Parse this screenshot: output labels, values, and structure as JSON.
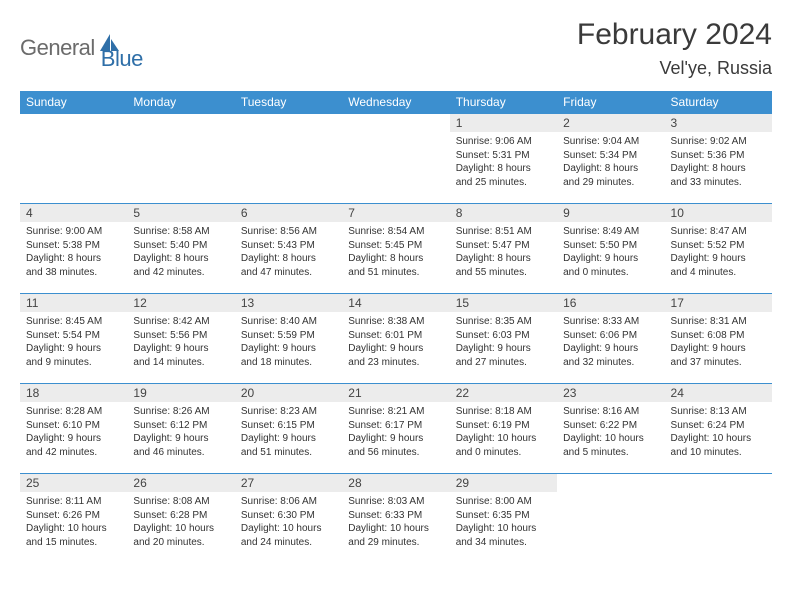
{
  "brand": {
    "general": "General",
    "blue": "Blue"
  },
  "title": "February 2024",
  "location": "Vel'ye, Russia",
  "colors": {
    "header_bg": "#3c8fcf",
    "header_text": "#ffffff",
    "daynum_bg": "#ececec",
    "border": "#3c8fcf",
    "logo_gray": "#6b6b6b",
    "logo_blue": "#2f6fa8"
  },
  "weekdays": [
    "Sunday",
    "Monday",
    "Tuesday",
    "Wednesday",
    "Thursday",
    "Friday",
    "Saturday"
  ],
  "weeks": [
    [
      {},
      {},
      {},
      {},
      {
        "day": "1",
        "sunrise": "Sunrise: 9:06 AM",
        "sunset": "Sunset: 5:31 PM",
        "daylight1": "Daylight: 8 hours",
        "daylight2": "and 25 minutes."
      },
      {
        "day": "2",
        "sunrise": "Sunrise: 9:04 AM",
        "sunset": "Sunset: 5:34 PM",
        "daylight1": "Daylight: 8 hours",
        "daylight2": "and 29 minutes."
      },
      {
        "day": "3",
        "sunrise": "Sunrise: 9:02 AM",
        "sunset": "Sunset: 5:36 PM",
        "daylight1": "Daylight: 8 hours",
        "daylight2": "and 33 minutes."
      }
    ],
    [
      {
        "day": "4",
        "sunrise": "Sunrise: 9:00 AM",
        "sunset": "Sunset: 5:38 PM",
        "daylight1": "Daylight: 8 hours",
        "daylight2": "and 38 minutes."
      },
      {
        "day": "5",
        "sunrise": "Sunrise: 8:58 AM",
        "sunset": "Sunset: 5:40 PM",
        "daylight1": "Daylight: 8 hours",
        "daylight2": "and 42 minutes."
      },
      {
        "day": "6",
        "sunrise": "Sunrise: 8:56 AM",
        "sunset": "Sunset: 5:43 PM",
        "daylight1": "Daylight: 8 hours",
        "daylight2": "and 47 minutes."
      },
      {
        "day": "7",
        "sunrise": "Sunrise: 8:54 AM",
        "sunset": "Sunset: 5:45 PM",
        "daylight1": "Daylight: 8 hours",
        "daylight2": "and 51 minutes."
      },
      {
        "day": "8",
        "sunrise": "Sunrise: 8:51 AM",
        "sunset": "Sunset: 5:47 PM",
        "daylight1": "Daylight: 8 hours",
        "daylight2": "and 55 minutes."
      },
      {
        "day": "9",
        "sunrise": "Sunrise: 8:49 AM",
        "sunset": "Sunset: 5:50 PM",
        "daylight1": "Daylight: 9 hours",
        "daylight2": "and 0 minutes."
      },
      {
        "day": "10",
        "sunrise": "Sunrise: 8:47 AM",
        "sunset": "Sunset: 5:52 PM",
        "daylight1": "Daylight: 9 hours",
        "daylight2": "and 4 minutes."
      }
    ],
    [
      {
        "day": "11",
        "sunrise": "Sunrise: 8:45 AM",
        "sunset": "Sunset: 5:54 PM",
        "daylight1": "Daylight: 9 hours",
        "daylight2": "and 9 minutes."
      },
      {
        "day": "12",
        "sunrise": "Sunrise: 8:42 AM",
        "sunset": "Sunset: 5:56 PM",
        "daylight1": "Daylight: 9 hours",
        "daylight2": "and 14 minutes."
      },
      {
        "day": "13",
        "sunrise": "Sunrise: 8:40 AM",
        "sunset": "Sunset: 5:59 PM",
        "daylight1": "Daylight: 9 hours",
        "daylight2": "and 18 minutes."
      },
      {
        "day": "14",
        "sunrise": "Sunrise: 8:38 AM",
        "sunset": "Sunset: 6:01 PM",
        "daylight1": "Daylight: 9 hours",
        "daylight2": "and 23 minutes."
      },
      {
        "day": "15",
        "sunrise": "Sunrise: 8:35 AM",
        "sunset": "Sunset: 6:03 PM",
        "daylight1": "Daylight: 9 hours",
        "daylight2": "and 27 minutes."
      },
      {
        "day": "16",
        "sunrise": "Sunrise: 8:33 AM",
        "sunset": "Sunset: 6:06 PM",
        "daylight1": "Daylight: 9 hours",
        "daylight2": "and 32 minutes."
      },
      {
        "day": "17",
        "sunrise": "Sunrise: 8:31 AM",
        "sunset": "Sunset: 6:08 PM",
        "daylight1": "Daylight: 9 hours",
        "daylight2": "and 37 minutes."
      }
    ],
    [
      {
        "day": "18",
        "sunrise": "Sunrise: 8:28 AM",
        "sunset": "Sunset: 6:10 PM",
        "daylight1": "Daylight: 9 hours",
        "daylight2": "and 42 minutes."
      },
      {
        "day": "19",
        "sunrise": "Sunrise: 8:26 AM",
        "sunset": "Sunset: 6:12 PM",
        "daylight1": "Daylight: 9 hours",
        "daylight2": "and 46 minutes."
      },
      {
        "day": "20",
        "sunrise": "Sunrise: 8:23 AM",
        "sunset": "Sunset: 6:15 PM",
        "daylight1": "Daylight: 9 hours",
        "daylight2": "and 51 minutes."
      },
      {
        "day": "21",
        "sunrise": "Sunrise: 8:21 AM",
        "sunset": "Sunset: 6:17 PM",
        "daylight1": "Daylight: 9 hours",
        "daylight2": "and 56 minutes."
      },
      {
        "day": "22",
        "sunrise": "Sunrise: 8:18 AM",
        "sunset": "Sunset: 6:19 PM",
        "daylight1": "Daylight: 10 hours",
        "daylight2": "and 0 minutes."
      },
      {
        "day": "23",
        "sunrise": "Sunrise: 8:16 AM",
        "sunset": "Sunset: 6:22 PM",
        "daylight1": "Daylight: 10 hours",
        "daylight2": "and 5 minutes."
      },
      {
        "day": "24",
        "sunrise": "Sunrise: 8:13 AM",
        "sunset": "Sunset: 6:24 PM",
        "daylight1": "Daylight: 10 hours",
        "daylight2": "and 10 minutes."
      }
    ],
    [
      {
        "day": "25",
        "sunrise": "Sunrise: 8:11 AM",
        "sunset": "Sunset: 6:26 PM",
        "daylight1": "Daylight: 10 hours",
        "daylight2": "and 15 minutes."
      },
      {
        "day": "26",
        "sunrise": "Sunrise: 8:08 AM",
        "sunset": "Sunset: 6:28 PM",
        "daylight1": "Daylight: 10 hours",
        "daylight2": "and 20 minutes."
      },
      {
        "day": "27",
        "sunrise": "Sunrise: 8:06 AM",
        "sunset": "Sunset: 6:30 PM",
        "daylight1": "Daylight: 10 hours",
        "daylight2": "and 24 minutes."
      },
      {
        "day": "28",
        "sunrise": "Sunrise: 8:03 AM",
        "sunset": "Sunset: 6:33 PM",
        "daylight1": "Daylight: 10 hours",
        "daylight2": "and 29 minutes."
      },
      {
        "day": "29",
        "sunrise": "Sunrise: 8:00 AM",
        "sunset": "Sunset: 6:35 PM",
        "daylight1": "Daylight: 10 hours",
        "daylight2": "and 34 minutes."
      },
      {},
      {}
    ]
  ]
}
